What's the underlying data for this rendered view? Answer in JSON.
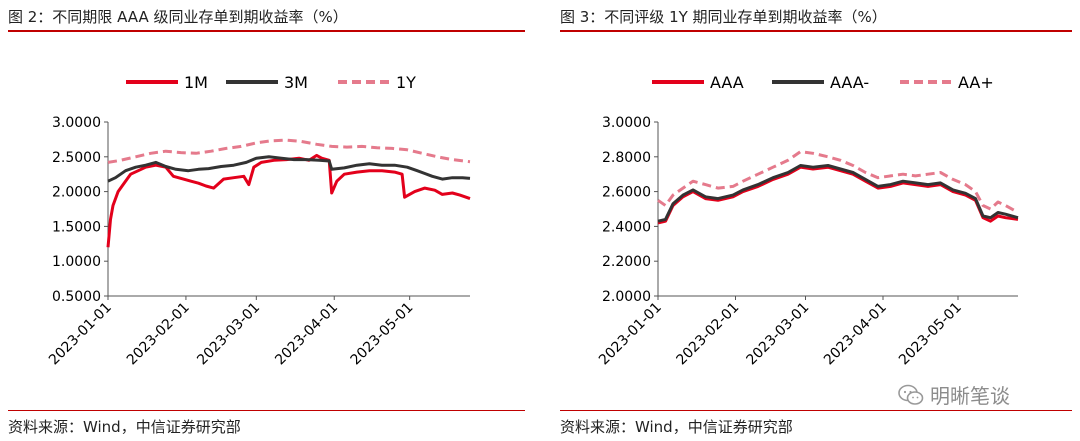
{
  "left": {
    "title": "图 2：不同期限 AAA 级同业存单到期收益率（%）",
    "source": "资料来源：Wind，中信证券研究部"
  },
  "right": {
    "title": "图 3：不同评级 1Y 期同业存单到期收益率（%）",
    "source": "资料来源：Wind，中信证券研究部"
  },
  "watermark": {
    "text": "明晰笔谈",
    "icon": "wechat-icon"
  },
  "colors": {
    "rule": "#c00000",
    "red": "#e3001b",
    "dark": "#333333",
    "pink": "#e57a8c"
  },
  "chart_data": [
    {
      "type": "line",
      "title": "",
      "xlabel": "",
      "ylabel": "",
      "ylim": [
        0.5,
        3.0
      ],
      "yticks": [
        "3.0000",
        "2.5000",
        "2.0000",
        "1.5000",
        "1.0000",
        "0.5000"
      ],
      "ytick_values": [
        3.0,
        2.5,
        2.0,
        1.5,
        1.0,
        0.5
      ],
      "xticks": [
        "2023-01-01",
        "2023-02-01",
        "2023-03-01",
        "2023-04-01",
        "2023-05-01"
      ],
      "xlim": [
        "2023-01-01",
        "2023-05-25"
      ],
      "legend_position": "top",
      "series": [
        {
          "name": "1M",
          "color": "#e3001b",
          "dash": "solid",
          "points": [
            [
              "2023-01-01",
              1.2
            ],
            [
              "2023-01-02",
              1.6
            ],
            [
              "2023-01-03",
              1.8
            ],
            [
              "2023-01-05",
              2.0
            ],
            [
              "2023-01-07",
              2.1
            ],
            [
              "2023-01-10",
              2.25
            ],
            [
              "2023-01-13",
              2.3
            ],
            [
              "2023-01-16",
              2.35
            ],
            [
              "2023-01-20",
              2.38
            ],
            [
              "2023-01-24",
              2.35
            ],
            [
              "2023-01-27",
              2.22
            ],
            [
              "2023-01-31",
              2.18
            ],
            [
              "2023-02-03",
              2.15
            ],
            [
              "2023-02-06",
              2.12
            ],
            [
              "2023-02-09",
              2.08
            ],
            [
              "2023-02-12",
              2.05
            ],
            [
              "2023-02-16",
              2.18
            ],
            [
              "2023-02-20",
              2.2
            ],
            [
              "2023-02-24",
              2.22
            ],
            [
              "2023-02-26",
              2.1
            ],
            [
              "2023-02-28",
              2.35
            ],
            [
              "2023-03-03",
              2.42
            ],
            [
              "2023-03-08",
              2.45
            ],
            [
              "2023-03-13",
              2.46
            ],
            [
              "2023-03-18",
              2.48
            ],
            [
              "2023-03-22",
              2.45
            ],
            [
              "2023-03-25",
              2.52
            ],
            [
              "2023-03-27",
              2.48
            ],
            [
              "2023-03-30",
              2.45
            ],
            [
              "2023-03-31",
              1.98
            ],
            [
              "2023-04-02",
              2.15
            ],
            [
              "2023-04-05",
              2.25
            ],
            [
              "2023-04-10",
              2.28
            ],
            [
              "2023-04-15",
              2.3
            ],
            [
              "2023-04-20",
              2.3
            ],
            [
              "2023-04-25",
              2.28
            ],
            [
              "2023-04-28",
              2.25
            ],
            [
              "2023-04-29",
              1.92
            ],
            [
              "2023-05-03",
              2.0
            ],
            [
              "2023-05-07",
              2.05
            ],
            [
              "2023-05-11",
              2.02
            ],
            [
              "2023-05-14",
              1.96
            ],
            [
              "2023-05-18",
              1.98
            ],
            [
              "2023-05-21",
              1.95
            ],
            [
              "2023-05-25",
              1.9
            ]
          ]
        },
        {
          "name": "3M",
          "color": "#333333",
          "dash": "solid",
          "points": [
            [
              "2023-01-01",
              2.15
            ],
            [
              "2023-01-04",
              2.2
            ],
            [
              "2023-01-08",
              2.3
            ],
            [
              "2023-01-12",
              2.35
            ],
            [
              "2023-01-16",
              2.38
            ],
            [
              "2023-01-20",
              2.42
            ],
            [
              "2023-01-24",
              2.36
            ],
            [
              "2023-01-28",
              2.32
            ],
            [
              "2023-02-02",
              2.3
            ],
            [
              "2023-02-06",
              2.32
            ],
            [
              "2023-02-10",
              2.33
            ],
            [
              "2023-02-15",
              2.36
            ],
            [
              "2023-02-20",
              2.38
            ],
            [
              "2023-02-25",
              2.42
            ],
            [
              "2023-03-01",
              2.48
            ],
            [
              "2023-03-06",
              2.5
            ],
            [
              "2023-03-11",
              2.48
            ],
            [
              "2023-03-16",
              2.46
            ],
            [
              "2023-03-21",
              2.46
            ],
            [
              "2023-03-26",
              2.45
            ],
            [
              "2023-03-30",
              2.44
            ],
            [
              "2023-03-31",
              2.32
            ],
            [
              "2023-04-05",
              2.34
            ],
            [
              "2023-04-10",
              2.38
            ],
            [
              "2023-04-15",
              2.4
            ],
            [
              "2023-04-20",
              2.38
            ],
            [
              "2023-04-25",
              2.38
            ],
            [
              "2023-04-30",
              2.35
            ],
            [
              "2023-05-04",
              2.3
            ],
            [
              "2023-05-07",
              2.26
            ],
            [
              "2023-05-10",
              2.22
            ],
            [
              "2023-05-14",
              2.18
            ],
            [
              "2023-05-18",
              2.2
            ],
            [
              "2023-05-22",
              2.2
            ],
            [
              "2023-05-25",
              2.19
            ]
          ]
        },
        {
          "name": "1Y",
          "color": "#e57a8c",
          "dash": "dash",
          "points": [
            [
              "2023-01-01",
              2.42
            ],
            [
              "2023-01-06",
              2.45
            ],
            [
              "2023-01-12",
              2.5
            ],
            [
              "2023-01-18",
              2.55
            ],
            [
              "2023-01-24",
              2.58
            ],
            [
              "2023-01-30",
              2.56
            ],
            [
              "2023-02-05",
              2.55
            ],
            [
              "2023-02-11",
              2.58
            ],
            [
              "2023-02-17",
              2.62
            ],
            [
              "2023-02-23",
              2.65
            ],
            [
              "2023-03-01",
              2.7
            ],
            [
              "2023-03-07",
              2.73
            ],
            [
              "2023-03-13",
              2.74
            ],
            [
              "2023-03-19",
              2.72
            ],
            [
              "2023-03-25",
              2.68
            ],
            [
              "2023-03-31",
              2.65
            ],
            [
              "2023-04-06",
              2.64
            ],
            [
              "2023-04-12",
              2.65
            ],
            [
              "2023-04-18",
              2.63
            ],
            [
              "2023-04-24",
              2.62
            ],
            [
              "2023-04-30",
              2.6
            ],
            [
              "2023-05-06",
              2.55
            ],
            [
              "2023-05-12",
              2.5
            ],
            [
              "2023-05-18",
              2.46
            ],
            [
              "2023-05-25",
              2.43
            ]
          ]
        }
      ]
    },
    {
      "type": "line",
      "title": "",
      "xlabel": "",
      "ylabel": "",
      "ylim": [
        2.0,
        3.0
      ],
      "yticks": [
        "3.0000",
        "2.8000",
        "2.6000",
        "2.4000",
        "2.2000",
        "2.0000"
      ],
      "ytick_values": [
        3.0,
        2.8,
        2.6,
        2.4,
        2.2,
        2.0
      ],
      "xticks": [
        "2023-01-01",
        "2023-02-01",
        "2023-03-01",
        "2023-04-01",
        "2023-05-01"
      ],
      "xlim": [
        "2023-01-01",
        "2023-05-25"
      ],
      "legend_position": "top",
      "series": [
        {
          "name": "AAA",
          "color": "#e3001b",
          "dash": "solid",
          "points": [
            [
              "2023-01-01",
              2.42
            ],
            [
              "2023-01-04",
              2.43
            ],
            [
              "2023-01-07",
              2.52
            ],
            [
              "2023-01-11",
              2.57
            ],
            [
              "2023-01-15",
              2.6
            ],
            [
              "2023-01-20",
              2.56
            ],
            [
              "2023-01-25",
              2.55
            ],
            [
              "2023-01-31",
              2.57
            ],
            [
              "2023-02-04",
              2.6
            ],
            [
              "2023-02-10",
              2.63
            ],
            [
              "2023-02-16",
              2.67
            ],
            [
              "2023-02-22",
              2.7
            ],
            [
              "2023-02-27",
              2.74
            ],
            [
              "2023-03-04",
              2.73
            ],
            [
              "2023-03-10",
              2.74
            ],
            [
              "2023-03-15",
              2.72
            ],
            [
              "2023-03-20",
              2.7
            ],
            [
              "2023-03-25",
              2.66
            ],
            [
              "2023-03-30",
              2.62
            ],
            [
              "2023-04-04",
              2.63
            ],
            [
              "2023-04-09",
              2.65
            ],
            [
              "2023-04-14",
              2.64
            ],
            [
              "2023-04-19",
              2.63
            ],
            [
              "2023-04-24",
              2.64
            ],
            [
              "2023-04-29",
              2.6
            ],
            [
              "2023-05-04",
              2.58
            ],
            [
              "2023-05-08",
              2.55
            ],
            [
              "2023-05-11",
              2.45
            ],
            [
              "2023-05-14",
              2.43
            ],
            [
              "2023-05-17",
              2.46
            ],
            [
              "2023-05-20",
              2.45
            ],
            [
              "2023-05-25",
              2.44
            ]
          ]
        },
        {
          "name": "AAA-",
          "color": "#333333",
          "dash": "solid",
          "points": [
            [
              "2023-01-01",
              2.43
            ],
            [
              "2023-01-04",
              2.44
            ],
            [
              "2023-01-07",
              2.53
            ],
            [
              "2023-01-11",
              2.58
            ],
            [
              "2023-01-15",
              2.61
            ],
            [
              "2023-01-20",
              2.57
            ],
            [
              "2023-01-25",
              2.56
            ],
            [
              "2023-01-31",
              2.58
            ],
            [
              "2023-02-04",
              2.61
            ],
            [
              "2023-02-10",
              2.64
            ],
            [
              "2023-02-16",
              2.68
            ],
            [
              "2023-02-22",
              2.71
            ],
            [
              "2023-02-27",
              2.75
            ],
            [
              "2023-03-04",
              2.74
            ],
            [
              "2023-03-10",
              2.75
            ],
            [
              "2023-03-15",
              2.73
            ],
            [
              "2023-03-20",
              2.71
            ],
            [
              "2023-03-25",
              2.67
            ],
            [
              "2023-03-30",
              2.63
            ],
            [
              "2023-04-04",
              2.64
            ],
            [
              "2023-04-09",
              2.66
            ],
            [
              "2023-04-14",
              2.65
            ],
            [
              "2023-04-19",
              2.64
            ],
            [
              "2023-04-24",
              2.65
            ],
            [
              "2023-04-29",
              2.61
            ],
            [
              "2023-05-04",
              2.59
            ],
            [
              "2023-05-08",
              2.56
            ],
            [
              "2023-05-11",
              2.46
            ],
            [
              "2023-05-14",
              2.45
            ],
            [
              "2023-05-17",
              2.48
            ],
            [
              "2023-05-20",
              2.47
            ],
            [
              "2023-05-25",
              2.45
            ]
          ]
        },
        {
          "name": "AA+",
          "color": "#e57a8c",
          "dash": "dash",
          "points": [
            [
              "2023-01-01",
              2.55
            ],
            [
              "2023-01-04",
              2.52
            ],
            [
              "2023-01-07",
              2.58
            ],
            [
              "2023-01-11",
              2.62
            ],
            [
              "2023-01-15",
              2.66
            ],
            [
              "2023-01-20",
              2.64
            ],
            [
              "2023-01-25",
              2.62
            ],
            [
              "2023-01-31",
              2.63
            ],
            [
              "2023-02-04",
              2.66
            ],
            [
              "2023-02-10",
              2.7
            ],
            [
              "2023-02-16",
              2.74
            ],
            [
              "2023-02-22",
              2.78
            ],
            [
              "2023-02-27",
              2.83
            ],
            [
              "2023-03-04",
              2.82
            ],
            [
              "2023-03-10",
              2.8
            ],
            [
              "2023-03-15",
              2.78
            ],
            [
              "2023-03-20",
              2.75
            ],
            [
              "2023-03-25",
              2.71
            ],
            [
              "2023-03-30",
              2.68
            ],
            [
              "2023-04-04",
              2.69
            ],
            [
              "2023-04-09",
              2.7
            ],
            [
              "2023-04-14",
              2.69
            ],
            [
              "2023-04-19",
              2.7
            ],
            [
              "2023-04-24",
              2.71
            ],
            [
              "2023-04-29",
              2.67
            ],
            [
              "2023-05-04",
              2.64
            ],
            [
              "2023-05-08",
              2.6
            ],
            [
              "2023-05-11",
              2.52
            ],
            [
              "2023-05-14",
              2.5
            ],
            [
              "2023-05-17",
              2.54
            ],
            [
              "2023-05-20",
              2.52
            ],
            [
              "2023-05-25",
              2.48
            ]
          ]
        }
      ]
    }
  ]
}
